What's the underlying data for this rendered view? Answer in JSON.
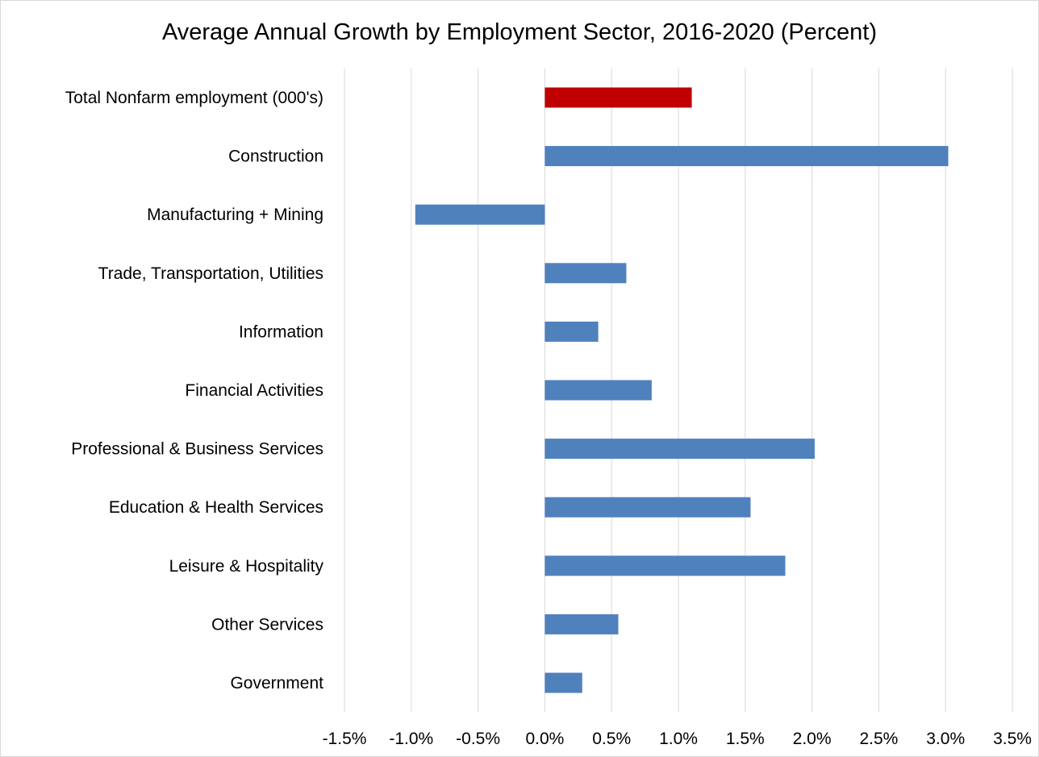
{
  "chart_data": {
    "type": "bar",
    "orientation": "horizontal",
    "title": "Average Annual Growth by Employment Sector, 2016-2020 (Percent)",
    "xlabel": "",
    "ylabel": "",
    "xlim": [
      -1.5,
      3.5
    ],
    "x_ticks": [
      -1.5,
      -1.0,
      -0.5,
      0.0,
      0.5,
      1.0,
      1.5,
      2.0,
      2.5,
      3.0,
      3.5
    ],
    "x_tick_labels": [
      "-1.5%",
      "-1.0%",
      "-0.5%",
      "0.0%",
      "0.5%",
      "1.0%",
      "1.5%",
      "2.0%",
      "2.5%",
      "3.0%",
      "3.5%"
    ],
    "grid": "vertical major gridlines",
    "legend": "none",
    "categories": [
      "Total Nonfarm employment (000's)",
      "Construction",
      "Manufacturing + Mining",
      "Trade, Transportation, Utilities",
      "Information",
      "Financial Activities",
      "Professional & Business Services",
      "Education & Health Services",
      "Leisure & Hospitality",
      "Other Services",
      "Government"
    ],
    "values": [
      1.1,
      3.02,
      -0.97,
      0.61,
      0.4,
      0.8,
      2.02,
      1.54,
      1.8,
      0.55,
      0.28
    ],
    "bar_colors": [
      "#c00000",
      "#4f81bd",
      "#4f81bd",
      "#4f81bd",
      "#4f81bd",
      "#4f81bd",
      "#4f81bd",
      "#4f81bd",
      "#4f81bd",
      "#4f81bd",
      "#4f81bd"
    ],
    "colors": {
      "highlight": "#c00000",
      "default": "#4f81bd",
      "gridline": "#d9d9d9"
    }
  }
}
